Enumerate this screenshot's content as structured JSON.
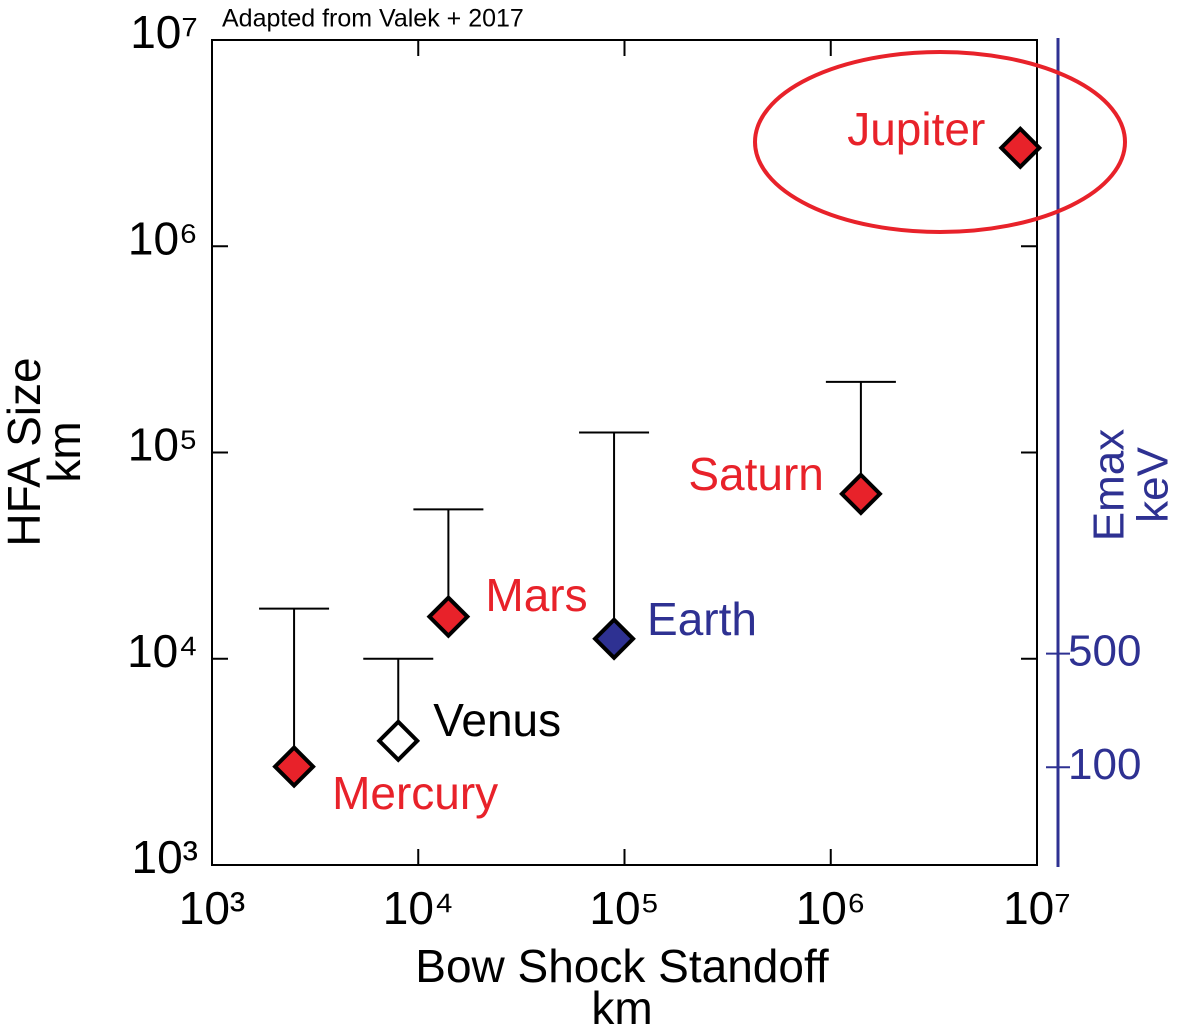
{
  "chart_data": {
    "type": "scatter",
    "annotation": "Adapted from Valek +  2017",
    "xlabel": [
      "Bow Shock Standoff",
      "km"
    ],
    "ylabel": [
      "HFA Size",
      "km"
    ],
    "y2label": [
      "Emax",
      "keV"
    ],
    "xscale": "log",
    "yscale": "log",
    "y2scale": "log",
    "xlim": [
      1000,
      10000000
    ],
    "ylim": [
      1000,
      10000000
    ],
    "y2lim": [
      25,
      3000000
    ],
    "xticks": [
      {
        "value": 1000,
        "label": "10³"
      },
      {
        "value": 10000,
        "label": "10⁴"
      },
      {
        "value": 100000,
        "label": "10⁵"
      },
      {
        "value": 1000000,
        "label": "10⁶"
      },
      {
        "value": 10000000,
        "label": "10⁷"
      }
    ],
    "yticks": [
      {
        "value": 1000,
        "label": "10³"
      },
      {
        "value": 10000,
        "label": "10⁴"
      },
      {
        "value": 100000,
        "label": "10⁵"
      },
      {
        "value": 1000000,
        "label": "10⁶"
      },
      {
        "value": 10000000,
        "label": "10⁷"
      }
    ],
    "y2ticks": [
      100,
      500
    ],
    "y2color": "#2e3192",
    "points": [
      {
        "name": "Mercury",
        "x": 2500,
        "y": 3000,
        "upper": 17500,
        "fill": "#e8222a",
        "label_color": "#e8222a"
      },
      {
        "name": "Venus",
        "x": 8000,
        "y": 4000,
        "upper": 10000,
        "fill": "#ffffff",
        "label_color": "#000000"
      },
      {
        "name": "Mars",
        "x": 14000,
        "y": 16000,
        "upper": 53000,
        "fill": "#e8222a",
        "label_color": "#e8222a"
      },
      {
        "name": "Earth",
        "x": 89000,
        "y": 12500,
        "upper": 125000,
        "fill": "#2e3192",
        "label_color": "#2e3192"
      },
      {
        "name": "Saturn",
        "x": 1400000,
        "y": 63000,
        "upper": 220000,
        "fill": "#e8222a",
        "label_color": "#e8222a"
      },
      {
        "name": "Jupiter",
        "x": 8300000,
        "y": 3000000,
        "fill": "#e8222a",
        "label_color": "#e8222a"
      }
    ]
  }
}
